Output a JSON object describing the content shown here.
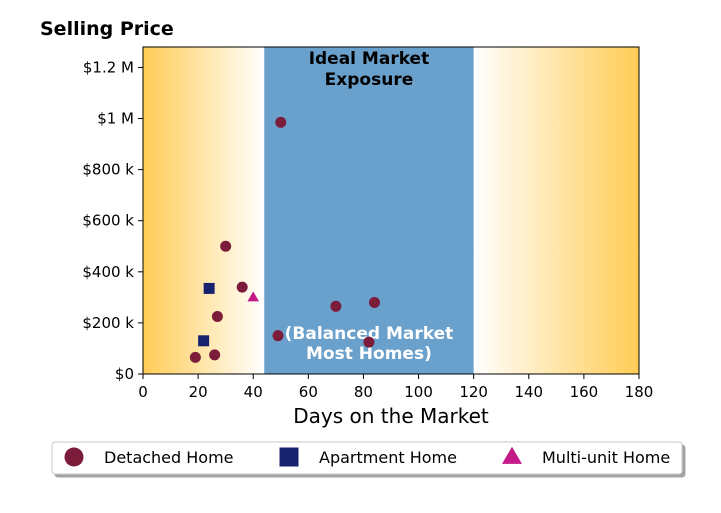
{
  "chart_data": {
    "type": "scatter",
    "title": "Selling Price",
    "xlabel": "Days on the Market",
    "ylabel": "Selling Price",
    "xlim": [
      0,
      180
    ],
    "ylim": [
      0,
      1280000
    ],
    "x_ticks": [
      0,
      20,
      40,
      60,
      80,
      100,
      120,
      140,
      160,
      180
    ],
    "x_tick_labels": [
      "0",
      "20",
      "40",
      "60",
      "80",
      "100",
      "120",
      "140",
      "160",
      "180"
    ],
    "y_ticks": [
      0,
      200000,
      400000,
      600000,
      800000,
      1000000,
      1200000
    ],
    "y_tick_labels": [
      "$0",
      "$200 k",
      "$400 k",
      "$600 k",
      "$800 k",
      "$1 M",
      "$1.2 M"
    ],
    "grid": false,
    "legend_position": "bottom",
    "zones": [
      {
        "name": "ideal",
        "x_range": [
          44,
          120
        ],
        "color": "#6aa0cc",
        "title_lines": [
          "Ideal Market",
          "Exposure"
        ],
        "subtitle_lines": [
          "(Balanced Market",
          "Most Homes)"
        ]
      }
    ],
    "background_gradient": {
      "edge_color": "#ffcc55",
      "center_color": "#ffffff"
    },
    "series": [
      {
        "name": "Detached Home",
        "marker": "circle",
        "color": "#7b1c3a",
        "points": [
          [
            19,
            65000
          ],
          [
            26,
            75000
          ],
          [
            27,
            225000
          ],
          [
            30,
            500000
          ],
          [
            36,
            340000
          ],
          [
            49,
            150000
          ],
          [
            50,
            985000
          ],
          [
            70,
            265000
          ],
          [
            82,
            125000
          ],
          [
            84,
            280000
          ]
        ]
      },
      {
        "name": "Apartment Home",
        "marker": "square",
        "color": "#16226e",
        "points": [
          [
            22,
            130000
          ],
          [
            24,
            335000
          ]
        ]
      },
      {
        "name": "Multi-unit Home",
        "marker": "triangle",
        "color": "#c21a86",
        "points": [
          [
            40,
            300000
          ]
        ]
      }
    ]
  }
}
